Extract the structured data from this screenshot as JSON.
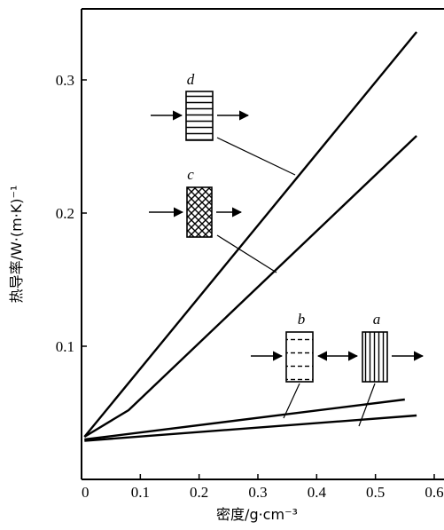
{
  "chart_data": {
    "type": "line",
    "xlabel": "密度/g·cm⁻³",
    "ylabel": "热导率/W·(m·K)⁻¹",
    "xlim": [
      0,
      0.6
    ],
    "ylim": [
      0,
      0.345
    ],
    "x_ticks": [
      {
        "value": 0,
        "label": "0"
      },
      {
        "value": 0.1,
        "label": "0.1"
      },
      {
        "value": 0.2,
        "label": "0.2"
      },
      {
        "value": 0.3,
        "label": "0.3"
      },
      {
        "value": 0.4,
        "label": "0.4"
      },
      {
        "value": 0.5,
        "label": "0.5"
      },
      {
        "value": 0.6,
        "label": "0.6"
      }
    ],
    "y_ticks": [
      {
        "value": 0.1,
        "label": "0.1"
      },
      {
        "value": 0.2,
        "label": "0.2"
      },
      {
        "value": 0.3,
        "label": "0.3"
      }
    ],
    "series": [
      {
        "name": "d",
        "x": [
          0.005,
          0.57
        ],
        "y": [
          0.032,
          0.336
        ]
      },
      {
        "name": "c",
        "x": [
          0.005,
          0.08,
          0.57
        ],
        "y": [
          0.032,
          0.052,
          0.258
        ]
      },
      {
        "name": "b",
        "x": [
          0.005,
          0.55
        ],
        "y": [
          0.03,
          0.06
        ]
      },
      {
        "name": "a",
        "x": [
          0.005,
          0.57
        ],
        "y": [
          0.029,
          0.048
        ]
      }
    ],
    "annotations": [
      {
        "series": "d",
        "letter": "d",
        "pattern": "horizontal-lines"
      },
      {
        "series": "c",
        "letter": "c",
        "pattern": "crosshatch"
      },
      {
        "series": "b",
        "letter": "b",
        "pattern": "dashed-horizontal"
      },
      {
        "series": "a",
        "letter": "a",
        "pattern": "vertical-lines"
      }
    ]
  }
}
